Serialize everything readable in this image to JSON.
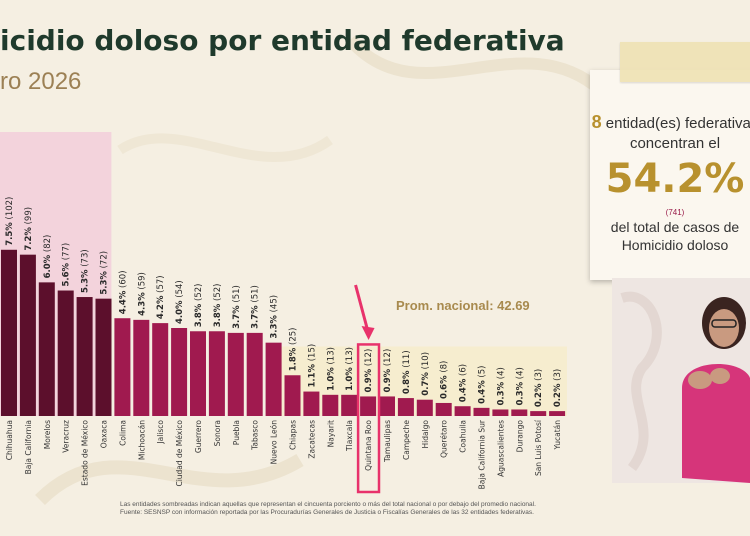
{
  "header": {
    "title": "icidio doloso por entidad federativa",
    "subtitle": "ro 2026"
  },
  "colors": {
    "highlight_bar": "#5c0f2c",
    "normal_bar": "#a01a4f",
    "avg_band": "#f6edcf",
    "highlight_region": "#f3d3dc",
    "selected_box": "#e8326b",
    "arrow": "#e8326b"
  },
  "chart_data": {
    "type": "bar",
    "categories": [
      "Chihuahua",
      "Baja California",
      "Morelos",
      "Veracruz",
      "Estado de México",
      "Oaxaca",
      "Colima",
      "Michoacán",
      "Jalisco",
      "Ciudad de México",
      "Guerrero",
      "Sonora",
      "Puebla",
      "Tabasco",
      "Nuevo León",
      "Chiapas",
      "Zacatecas",
      "Nayarit",
      "Tlaxcala",
      "Quintana Roo",
      "Tamaulipas",
      "Campeche",
      "Hidalgo",
      "Querétaro",
      "Coahuila",
      "Baja California Sur",
      "Aguascalientes",
      "Durango",
      "San Luis Potosí",
      "Yucatán"
    ],
    "values": [
      102,
      99,
      82,
      77,
      73,
      72,
      60,
      59,
      57,
      54,
      52,
      52,
      51,
      51,
      45,
      25,
      15,
      13,
      13,
      12,
      12,
      11,
      10,
      8,
      6,
      5,
      4,
      4,
      3,
      3
    ],
    "pct_labels": [
      "7.5%",
      "7.2%",
      "6.0%",
      "5.6%",
      "5.3%",
      "5.3%",
      "4.4%",
      "4.3%",
      "4.2%",
      "4.0%",
      "3.8%",
      "3.8%",
      "3.7%",
      "3.7%",
      "3.3%",
      "1.8%",
      "1.1%",
      "1.0%",
      "1.0%",
      "0.9%",
      "0.9%",
      "0.8%",
      "0.7%",
      "0.6%",
      "0.4%",
      "0.4%",
      "0.3%",
      "0.3%",
      "0.2%",
      "0.2%"
    ],
    "count_labels": [
      "(102)",
      "(99)",
      "(82)",
      "(77)",
      "(73)",
      "(72)",
      "(60)",
      "(59)",
      "(57)",
      "(54)",
      "(52)",
      "(52)",
      "(51)",
      "(51)",
      "(45)",
      "(25)",
      "(15)",
      "(13)",
      "(13)",
      "(12)",
      "(12)",
      "(11)",
      "(10)",
      "(8)",
      "(6)",
      "(5)",
      "(4)",
      "(4)",
      "(3)",
      "(3)"
    ],
    "highlighted_count": 6,
    "selected_category": "Quintana Roo",
    "average": 42.69,
    "average_label": "Prom. nacional: 42.69",
    "ylim": [
      0,
      135
    ],
    "grid": false,
    "xlabel": "",
    "ylabel": ""
  },
  "info_card": {
    "count": "8",
    "line1_rest": " entidad(es) federativas",
    "line2": "concentran el",
    "percent": "54.2%",
    "cases": "(741)",
    "line3": "del total de casos de",
    "line4": "Homicidio doloso"
  },
  "footnote": {
    "line1": "Las entidades sombreadas indican aquellas que representan el cincuenta porciento o más del total nacional o por debajo del promedio nacional.",
    "line2": "Fuente: SESNSP con información reportada por las Procuradurías Generales de Justicia o Fiscalías Generales de las 32 entidades federativas."
  }
}
